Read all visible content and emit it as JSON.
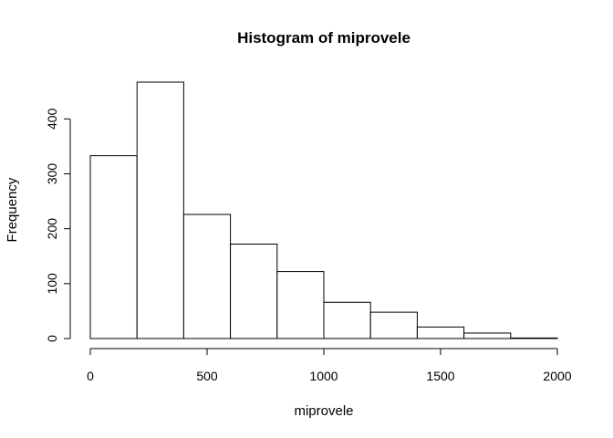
{
  "chart_data": {
    "type": "bar",
    "title": "Histogram of miprovele",
    "xlabel": "miprovele",
    "ylabel": "Frequency",
    "bins": [
      {
        "x0": 0,
        "x1": 200,
        "count": 333
      },
      {
        "x0": 200,
        "x1": 400,
        "count": 467
      },
      {
        "x0": 400,
        "x1": 600,
        "count": 226
      },
      {
        "x0": 600,
        "x1": 800,
        "count": 172
      },
      {
        "x0": 800,
        "x1": 1000,
        "count": 122
      },
      {
        "x0": 1000,
        "x1": 1200,
        "count": 66
      },
      {
        "x0": 1200,
        "x1": 1400,
        "count": 48
      },
      {
        "x0": 1400,
        "x1": 1600,
        "count": 21
      },
      {
        "x0": 1600,
        "x1": 1800,
        "count": 10
      },
      {
        "x0": 1800,
        "x1": 2000,
        "count": 1
      }
    ],
    "xlim": [
      0,
      2000
    ],
    "ylim": [
      0,
      467
    ],
    "xticks": [
      0,
      500,
      1000,
      1500,
      2000
    ],
    "yticks": [
      0,
      100,
      200,
      300,
      400
    ],
    "grid": false,
    "colors": {
      "bar_fill": "#ffffff",
      "bar_stroke": "#000000"
    }
  }
}
